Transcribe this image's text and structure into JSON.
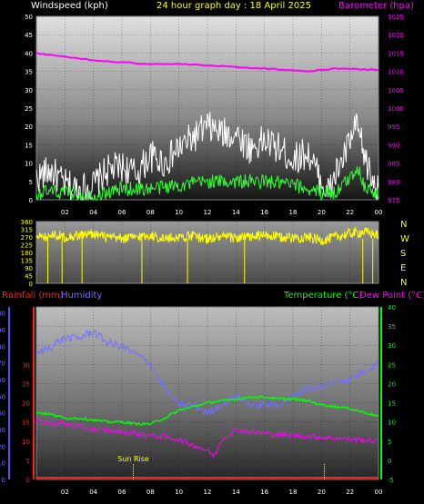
{
  "header": {
    "wind_label": "Windspeed (kph)",
    "title": "24 hour graph day : 18 April 2025",
    "baro_label": "Barometer (hpa)"
  },
  "labels": {
    "rainfall": "Rainfall (mm)",
    "humidity": "Humidity",
    "temperature": "Temperature (°C)",
    "dewpoint": "Dew Point (°C)",
    "sunrise": "Sun Rise"
  },
  "colors": {
    "wind_gust": "#ffffff",
    "wind_avg": "#33ff33",
    "barometer": "#ff00ff",
    "direction": "#ffff00",
    "rain": "#ff2020",
    "humidity": "#7070ff",
    "temperature": "#00ff00",
    "dewpoint": "#ff00ff",
    "axis_text_white": "#ffffff"
  },
  "chart_data": [
    {
      "type": "line",
      "name": "wind_barometer",
      "x_ticks": [
        "02",
        "04",
        "06",
        "08",
        "10",
        "12",
        "14",
        "16",
        "18",
        "20",
        "22",
        "00"
      ],
      "y_left_ticks": [
        0,
        5,
        10,
        15,
        20,
        25,
        30,
        35,
        40,
        45,
        50
      ],
      "y_left_range": [
        0,
        50
      ],
      "y_right_ticks": [
        975,
        980,
        985,
        990,
        995,
        1000,
        1005,
        1010,
        1015,
        1020,
        1025
      ],
      "y_right_range": [
        975,
        1025
      ],
      "series": [
        {
          "key": "baro",
          "hours": [
            0,
            2,
            4,
            6,
            8,
            10,
            12,
            14,
            16,
            18,
            19,
            20,
            21,
            22,
            23,
            24
          ],
          "values": [
            1015,
            1014,
            1013,
            1012.5,
            1012,
            1012,
            1011.6,
            1011.2,
            1010.8,
            1010.3,
            1010,
            1010.4,
            1010.8,
            1010.7,
            1010.5,
            1010.5
          ]
        },
        {
          "key": "gust",
          "hours": [
            0,
            1,
            2,
            3,
            4,
            5,
            6,
            7,
            8,
            9,
            10,
            11,
            12,
            13,
            14,
            15,
            16,
            17,
            18,
            19,
            20,
            20.5,
            21,
            21.5,
            22,
            22.5,
            23,
            23.5,
            24
          ],
          "values": [
            6,
            8,
            4,
            3,
            4,
            8,
            9,
            7,
            12,
            10,
            14,
            17,
            20,
            18,
            18,
            14,
            16,
            14,
            11,
            13,
            5,
            2,
            7,
            11,
            16,
            20,
            12,
            6,
            2
          ]
        },
        {
          "key": "avg",
          "hours": [
            0,
            2,
            4,
            6,
            8,
            10,
            12,
            14,
            16,
            18,
            20,
            21,
            22,
            22.5,
            23,
            24
          ],
          "values": [
            2,
            2,
            1,
            3,
            3,
            4,
            5,
            5,
            5,
            4,
            2,
            2,
            6,
            9,
            4,
            1
          ]
        }
      ]
    },
    {
      "type": "line",
      "name": "wind_direction",
      "y_left_ticks": [
        0,
        45,
        90,
        135,
        180,
        225,
        270,
        315,
        360
      ],
      "y_left_range": [
        0,
        360
      ],
      "y_right_labels": [
        "N",
        "W",
        "S",
        "E",
        "N"
      ],
      "series": [
        {
          "key": "dir",
          "hours": [
            0,
            0.5,
            1,
            2,
            3,
            4,
            5,
            6,
            7,
            8,
            9,
            10,
            11,
            12,
            13,
            14,
            15,
            16,
            17,
            18,
            19,
            20,
            21,
            22,
            23,
            24
          ],
          "values": [
            290,
            260,
            290,
            270,
            280,
            290,
            265,
            260,
            270,
            280,
            260,
            270,
            275,
            260,
            270,
            265,
            270,
            280,
            270,
            265,
            270,
            250,
            270,
            290,
            300,
            280
          ]
        }
      ]
    },
    {
      "type": "line",
      "name": "rain_humidity_temperature",
      "y_left_rain_ticks": [
        0,
        5,
        10,
        15,
        20,
        25,
        30
      ],
      "y_left_hum_ticks": [
        0,
        10,
        20,
        30,
        40,
        50,
        60,
        70,
        80,
        90,
        100
      ],
      "y_right_ticks": [
        -5,
        0,
        5,
        10,
        15,
        20,
        25,
        30,
        35,
        40
      ],
      "y_right_range": [
        -5,
        40
      ],
      "series": [
        {
          "key": "humidity",
          "hours": [
            0,
            1,
            2,
            3,
            4,
            5,
            6,
            7,
            8,
            9,
            10,
            11,
            12,
            13,
            14,
            15,
            16,
            17,
            18,
            19,
            20,
            21,
            22,
            23,
            24
          ],
          "values": [
            75,
            80,
            85,
            85,
            89,
            82,
            80,
            75,
            70,
            55,
            45,
            45,
            40,
            45,
            50,
            45,
            45,
            45,
            50,
            55,
            55,
            60,
            60,
            65,
            70
          ]
        },
        {
          "key": "temp",
          "hours": [
            0,
            1,
            2,
            3,
            4,
            5,
            6,
            7,
            8,
            9,
            10,
            11,
            12,
            13,
            14,
            15,
            16,
            17,
            18,
            19,
            20,
            21,
            22,
            23,
            24
          ],
          "values": [
            12.5,
            12,
            11,
            11,
            10.5,
            10,
            10,
            9.5,
            9.5,
            11,
            13,
            14,
            15,
            15.5,
            16,
            16.5,
            16.5,
            16,
            16,
            15.5,
            14.5,
            14,
            13.5,
            12.5,
            11.5
          ]
        },
        {
          "key": "dew",
          "hours": [
            0,
            2,
            4,
            6,
            8,
            10,
            11,
            12,
            12.5,
            13,
            14,
            15,
            16,
            18,
            20,
            22,
            24
          ],
          "values": [
            10,
            9.5,
            8,
            7.5,
            6.5,
            5.5,
            4,
            2.5,
            1,
            5.5,
            8,
            7.5,
            7,
            6.5,
            6,
            5.5,
            5
          ]
        },
        {
          "key": "rain",
          "hours": [
            0,
            24
          ],
          "values": [
            0,
            0
          ]
        }
      ]
    }
  ]
}
